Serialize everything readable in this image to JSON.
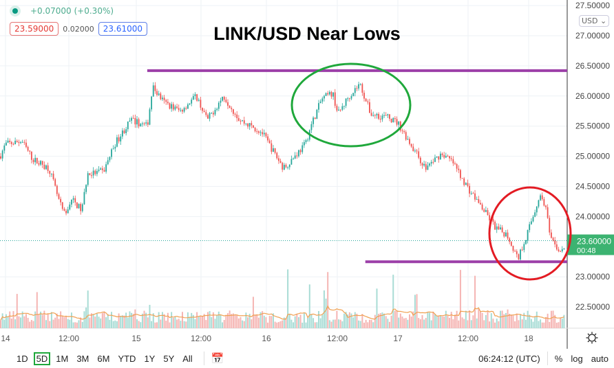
{
  "legend": {
    "change": "+0.07000 (+0.30%)",
    "bid": "23.59000",
    "spread": "0.02000",
    "ask": "23.61000"
  },
  "currency": "USD ⌄",
  "current_price": {
    "label": "23.60000",
    "countdown": "00:48"
  },
  "toolbar": {
    "ranges": [
      "1D",
      "5D",
      "1M",
      "3M",
      "6M",
      "YTD",
      "1Y",
      "5Y",
      "All"
    ],
    "active_range": "5D",
    "time": "06:24:12 (UTC)",
    "percent": "%",
    "log": "log",
    "auto": "auto"
  },
  "colors": {
    "up": "#26a69a",
    "down": "#ef5350",
    "annotation_line": "#9c3fa8",
    "circle_high": "#1fa83b",
    "circle_low": "#e31b23",
    "volume_ma": "#f0a050"
  },
  "chart_data": {
    "type": "candlestick",
    "title": "LINK/USD Near Lows",
    "ylim": [
      22.2,
      27.55
    ],
    "yticks": [
      "27.50000",
      "27.00000",
      "26.50000",
      "26.00000",
      "25.50000",
      "25.00000",
      "24.50000",
      "24.00000",
      "23.00000",
      "22.50000"
    ],
    "xticks": [
      "14",
      "12:00",
      "15",
      "12:00",
      "16",
      "12:00",
      "17",
      "12:00",
      "18"
    ],
    "grid": true,
    "price_path": [
      [
        "13 23:00",
        25.0
      ],
      [
        "14 00:00",
        25.2
      ],
      [
        "14 03:00",
        25.25
      ],
      [
        "14 05:00",
        24.95
      ],
      [
        "14 08:00",
        24.8
      ],
      [
        "14 10:00",
        24.2
      ],
      [
        "14 11:00",
        24.0
      ],
      [
        "14 12:00",
        24.3
      ],
      [
        "14 14:00",
        24.1
      ],
      [
        "14 15:00",
        24.7
      ],
      [
        "14 18:00",
        24.75
      ],
      [
        "14 20:00",
        25.2
      ],
      [
        "14 23:00",
        25.6
      ],
      [
        "15 02:00",
        25.5
      ],
      [
        "15 03:00",
        26.15
      ],
      [
        "15 05:00",
        25.9
      ],
      [
        "15 08:00",
        25.75
      ],
      [
        "15 11:00",
        26.0
      ],
      [
        "15 13:00",
        25.6
      ],
      [
        "15 16:00",
        26.0
      ],
      [
        "15 19:00",
        25.6
      ],
      [
        "15 23:00",
        25.4
      ],
      [
        "16 01:00",
        25.1
      ],
      [
        "16 03:00",
        24.8
      ],
      [
        "16 07:00",
        25.2
      ],
      [
        "16 08:00",
        25.5
      ],
      [
        "16 10:00",
        25.95
      ],
      [
        "16 12:00",
        26.05
      ],
      [
        "16 13:00",
        25.7
      ],
      [
        "16 15:00",
        26.0
      ],
      [
        "16 17:00",
        26.2
      ],
      [
        "16 19:00",
        25.7
      ],
      [
        "16 22:00",
        25.65
      ],
      [
        "17 00:00",
        25.55
      ],
      [
        "17 03:00",
        25.1
      ],
      [
        "17 05:00",
        24.8
      ],
      [
        "17 08:00",
        25.05
      ],
      [
        "17 10:00",
        24.9
      ],
      [
        "17 13:00",
        24.45
      ],
      [
        "17 15:00",
        24.2
      ],
      [
        "17 18:00",
        23.8
      ],
      [
        "17 20:00",
        23.7
      ],
      [
        "17 22:00",
        23.3
      ],
      [
        "18 00:00",
        23.8
      ],
      [
        "18 02:00",
        24.35
      ],
      [
        "18 03:00",
        24.2
      ],
      [
        "18 04:00",
        23.6
      ],
      [
        "18 06:00",
        23.4
      ],
      [
        "18 07:00",
        23.6
      ]
    ],
    "annotations": [
      {
        "type": "horizontal-line",
        "price": 26.42,
        "from": "15 02:00"
      },
      {
        "type": "horizontal-line",
        "price": 23.25,
        "from": "16 18:00"
      },
      {
        "type": "ellipse",
        "color": "green",
        "around": "16 highs"
      },
      {
        "type": "ellipse",
        "color": "red",
        "around": "18 lows"
      }
    ]
  }
}
